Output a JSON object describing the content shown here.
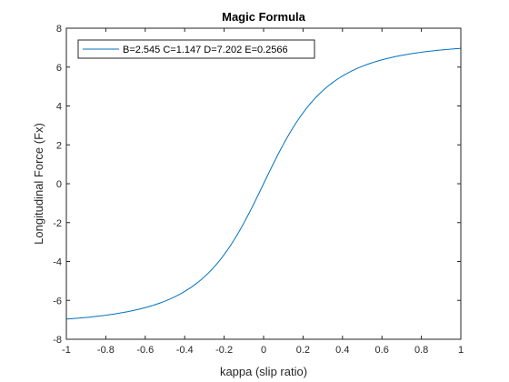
{
  "chart_data": {
    "type": "line",
    "title": "Magic Formula",
    "xlabel": "kappa (slip ratio)",
    "ylabel": "Longitudinal Force (Fx)",
    "xlim": [
      -1,
      1
    ],
    "ylim": [
      -8,
      8
    ],
    "xticks": [
      -1,
      -0.8,
      -0.6,
      -0.4,
      -0.2,
      0,
      0.2,
      0.4,
      0.6,
      0.8,
      1
    ],
    "xtick_labels": [
      "-1",
      "-0.8",
      "-0.6",
      "-0.4",
      "-0.2",
      "0",
      "0.2",
      "0.4",
      "0.6",
      "0.8",
      "1"
    ],
    "yticks": [
      -8,
      -6,
      -4,
      -2,
      0,
      2,
      4,
      6,
      8
    ],
    "ytick_labels": [
      "-8",
      "-6",
      "-4",
      "-2",
      "0",
      "2",
      "4",
      "6",
      "8"
    ],
    "grid": false,
    "legend_position": "top-left",
    "series": [
      {
        "name": "B=2.545  C=1.147  D=7.202  E=0.2566",
        "color": "#0072BD",
        "model": {
          "B": 2.545,
          "C": 1.147,
          "D": 7.202,
          "E": 0.2566
        }
      }
    ]
  }
}
